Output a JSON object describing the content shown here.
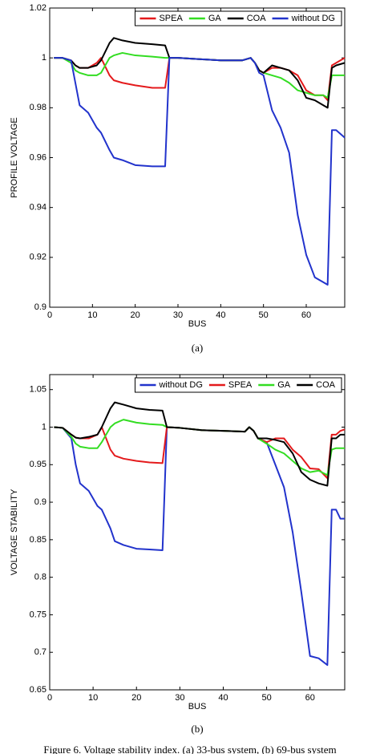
{
  "chart_data": [
    {
      "type": "line",
      "panel": "(a)",
      "xlabel": "BUS",
      "ylabel": "PROFILE VOLTAGE",
      "xlim": [
        0,
        69
      ],
      "xticks": [
        0,
        10,
        20,
        30,
        40,
        50,
        60
      ],
      "ylim": [
        0.9,
        1.02
      ],
      "yticks": [
        0.9,
        0.92,
        0.94,
        0.96,
        0.98,
        1,
        1.02
      ],
      "legend": "upper right",
      "x": [
        1,
        3,
        5,
        6,
        7,
        9,
        11,
        12,
        14,
        15,
        17,
        20,
        24,
        27,
        28,
        30,
        35,
        40,
        45,
        47,
        48,
        49,
        50,
        52,
        54,
        56,
        58,
        60,
        62,
        64,
        65,
        66,
        67,
        69
      ],
      "series": [
        {
          "name": "SPEA",
          "color": "#e41a1c",
          "values": [
            1,
            1,
            0.999,
            0.997,
            0.996,
            0.996,
            0.998,
            1.0,
            0.993,
            0.991,
            0.99,
            0.989,
            0.988,
            0.988,
            1.0,
            1.0,
            0.9995,
            0.999,
            0.999,
            1.0,
            0.998,
            0.995,
            0.994,
            0.996,
            0.996,
            0.995,
            0.993,
            0.987,
            0.985,
            0.985,
            0.983,
            0.997,
            0.998,
            1.0
          ]
        },
        {
          "name": "GA",
          "color": "#33dd22",
          "values": [
            1,
            1,
            0.998,
            0.995,
            0.994,
            0.993,
            0.993,
            0.994,
            1.0,
            1.001,
            1.002,
            1.001,
            1.0005,
            1.0,
            1.0,
            1.0,
            0.9995,
            0.999,
            0.999,
            1.0,
            0.998,
            0.995,
            0.994,
            0.993,
            0.992,
            0.99,
            0.987,
            0.986,
            0.985,
            0.985,
            0.984,
            0.993,
            0.993,
            0.993
          ]
        },
        {
          "name": "COA",
          "color": "#000000",
          "values": [
            1,
            1,
            0.999,
            0.997,
            0.996,
            0.996,
            0.997,
            0.999,
            1.006,
            1.008,
            1.007,
            1.006,
            1.0055,
            1.005,
            1.0,
            1.0,
            0.9995,
            0.999,
            0.999,
            1.0,
            0.998,
            0.995,
            0.994,
            0.997,
            0.996,
            0.995,
            0.991,
            0.984,
            0.983,
            0.981,
            0.98,
            0.996,
            0.997,
            0.998
          ]
        },
        {
          "name": "without DG",
          "color": "#2233cc",
          "values": [
            1,
            1,
            0.999,
            0.99,
            0.981,
            0.978,
            0.972,
            0.97,
            0.963,
            0.96,
            0.959,
            0.957,
            0.9565,
            0.9565,
            1.0,
            1.0,
            0.9995,
            0.999,
            0.999,
            1.0,
            0.998,
            0.994,
            0.993,
            0.979,
            0.972,
            0.962,
            0.937,
            0.921,
            0.912,
            0.91,
            0.909,
            0.971,
            0.971,
            0.968
          ]
        }
      ]
    },
    {
      "type": "line",
      "panel": "(b)",
      "xlabel": "BUS",
      "ylabel": "VOLTAGE STABILITY",
      "xlim": [
        0,
        68
      ],
      "xticks": [
        0,
        10,
        20,
        30,
        40,
        50,
        60
      ],
      "ylim": [
        0.65,
        1.07
      ],
      "yticks": [
        0.65,
        0.7,
        0.75,
        0.8,
        0.85,
        0.9,
        0.95,
        1,
        1.05
      ],
      "legend": "upper right",
      "x": [
        1,
        3,
        5,
        6,
        7,
        9,
        11,
        12,
        14,
        15,
        17,
        20,
        23,
        26,
        27,
        30,
        35,
        40,
        45,
        46,
        47,
        48,
        50,
        52,
        54,
        56,
        58,
        60,
        62,
        64,
        65,
        66,
        67,
        68
      ],
      "series": [
        {
          "name": "without DG",
          "color": "#2233cc",
          "values": [
            1,
            0.999,
            0.985,
            0.95,
            0.925,
            0.915,
            0.895,
            0.89,
            0.865,
            0.848,
            0.843,
            0.838,
            0.837,
            0.836,
            1.0,
            0.999,
            0.996,
            0.995,
            0.994,
            1.0,
            0.995,
            0.985,
            0.98,
            0.95,
            0.92,
            0.86,
            0.78,
            0.695,
            0.692,
            0.683,
            0.89,
            0.89,
            0.878,
            0.878
          ]
        },
        {
          "name": "SPEA",
          "color": "#e41a1c",
          "values": [
            1,
            0.999,
            0.99,
            0.986,
            0.985,
            0.985,
            0.99,
            1.0,
            0.97,
            0.962,
            0.958,
            0.955,
            0.953,
            0.952,
            1.0,
            0.999,
            0.996,
            0.995,
            0.994,
            1.0,
            0.995,
            0.985,
            0.98,
            0.985,
            0.985,
            0.97,
            0.96,
            0.945,
            0.944,
            0.932,
            0.99,
            0.99,
            0.995,
            0.997
          ]
        },
        {
          "name": "GA",
          "color": "#33dd22",
          "values": [
            1,
            0.999,
            0.987,
            0.978,
            0.974,
            0.972,
            0.972,
            0.98,
            1.0,
            1.005,
            1.01,
            1.006,
            1.004,
            1.003,
            1.0,
            0.999,
            0.996,
            0.995,
            0.994,
            1.0,
            0.995,
            0.985,
            0.978,
            0.97,
            0.965,
            0.955,
            0.945,
            0.94,
            0.942,
            0.936,
            0.97,
            0.972,
            0.972,
            0.972
          ]
        },
        {
          "name": "COA",
          "color": "#000000",
          "values": [
            1,
            0.999,
            0.99,
            0.986,
            0.985,
            0.987,
            0.99,
            1.0,
            1.025,
            1.033,
            1.03,
            1.025,
            1.023,
            1.022,
            1.0,
            0.999,
            0.996,
            0.995,
            0.994,
            1.0,
            0.995,
            0.985,
            0.985,
            0.983,
            0.98,
            0.965,
            0.94,
            0.93,
            0.925,
            0.922,
            0.985,
            0.985,
            0.99,
            0.99
          ]
        }
      ]
    }
  ],
  "caption": "Figure 6. Voltage stability index. (a) 33-bus system, (b) 69-bus system"
}
